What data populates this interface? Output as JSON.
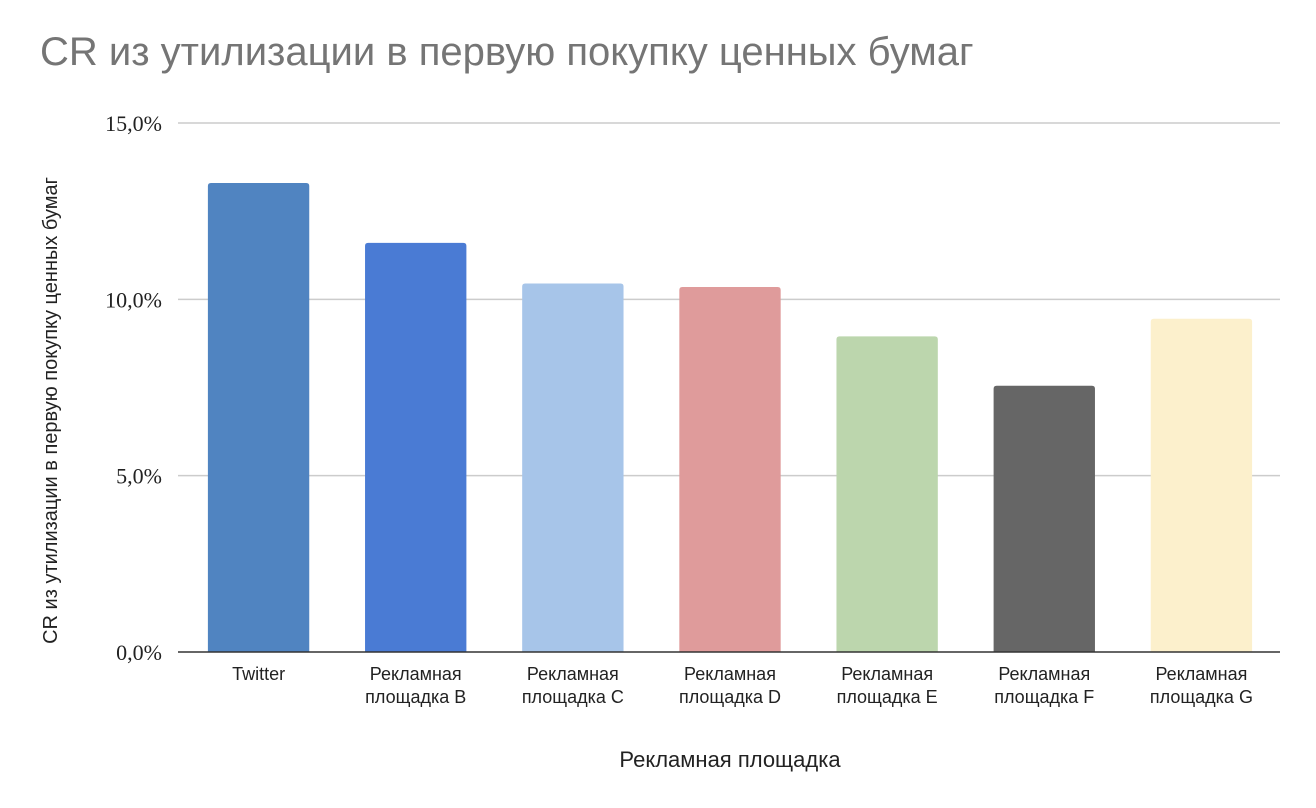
{
  "chart_data": {
    "type": "bar",
    "title": "CR из утилизации в первую покупку ценных бумаг",
    "xlabel": "Рекламная площадка",
    "ylabel": "CR из утилизации в первую покупку ценных бумаг",
    "categories": [
      "Twitter",
      "Рекламная площадка B",
      "Рекламная площадка C",
      "Рекламная площадка D",
      "Рекламная площадка E",
      "Рекламная площадка F",
      "Рекламная площадка G"
    ],
    "category_lines": [
      [
        "Twitter"
      ],
      [
        "Рекламная",
        "площадка B"
      ],
      [
        "Рекламная",
        "площадка C"
      ],
      [
        "Рекламная",
        "площадка D"
      ],
      [
        "Рекламная",
        "площадка E"
      ],
      [
        "Рекламная",
        "площадка F"
      ],
      [
        "Рекламная",
        "площадка G"
      ]
    ],
    "values": [
      13.3,
      11.6,
      10.45,
      10.35,
      8.95,
      7.55,
      9.45
    ],
    "colors": [
      "#5084c1",
      "#4a7bd4",
      "#a7c5e9",
      "#df9b9b",
      "#bcd6ad",
      "#666666",
      "#fcf0cc"
    ],
    "ylim": [
      0,
      15
    ],
    "yticks": [
      0,
      5,
      10,
      15
    ],
    "ytick_labels": [
      "0,0%",
      "5,0%",
      "10,0%",
      "15,0%"
    ],
    "grid": true,
    "legend": "none"
  }
}
